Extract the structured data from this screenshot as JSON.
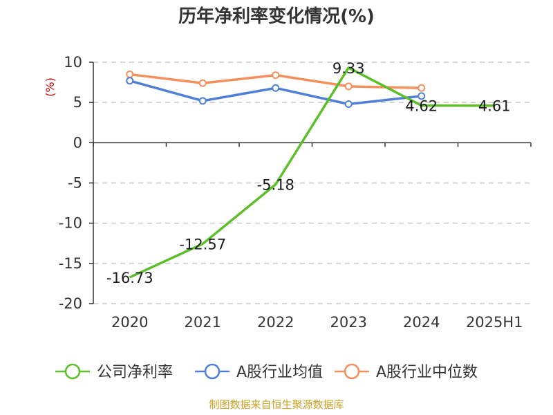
{
  "chart_data": {
    "type": "line",
    "title": "历年净利率变化情况(%)",
    "ylabel": "(%)",
    "categories": [
      "2020",
      "2021",
      "2022",
      "2023",
      "2024",
      "2025H1"
    ],
    "ylim": [
      -20,
      10
    ],
    "yticks": [
      "10",
      "5",
      "0",
      "-5",
      "-10",
      "-15",
      "-20"
    ],
    "ytick_values": [
      10,
      5,
      0,
      -5,
      -10,
      -15,
      -20
    ],
    "grid": true,
    "legend_position": "bottom",
    "series": [
      {
        "name": "公司净利率",
        "color": "#5cbf2a",
        "values": [
          -16.73,
          -12.57,
          -5.18,
          9.33,
          4.62,
          4.61
        ],
        "labels": [
          "-16.73",
          "-12.57",
          "-5.18",
          "9.33",
          "4.62",
          "4.61"
        ],
        "markers": false
      },
      {
        "name": "A股行业均值",
        "color": "#4f7fd6",
        "values": [
          7.7,
          5.2,
          6.8,
          4.8,
          5.8,
          null
        ],
        "markers": true
      },
      {
        "name": "A股行业中位数",
        "color": "#f58f5c",
        "values": [
          8.5,
          7.4,
          8.4,
          7.0,
          6.8,
          null
        ],
        "markers": true
      }
    ]
  },
  "source": "制图数据来自恒生聚源数据库"
}
